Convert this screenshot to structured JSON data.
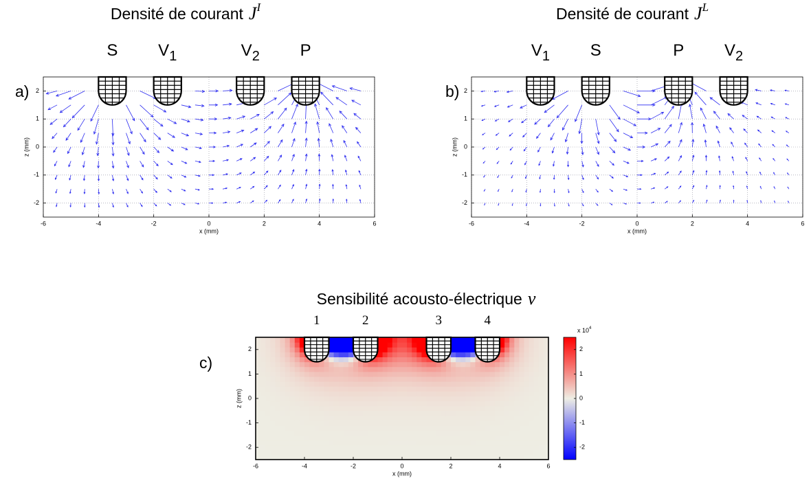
{
  "chart_data": [
    {
      "type": "quiver",
      "panel_label": "a)",
      "title": "Densité de courant",
      "title_symbol": "J",
      "title_superscript": "I",
      "xlabel": "x (mm)",
      "ylabel": "z (mm)",
      "xlim": [
        -6,
        6
      ],
      "ylim": [
        -2.5,
        2.5
      ],
      "xticks": [
        -6,
        -4,
        -2,
        0,
        2,
        4,
        6
      ],
      "yticks": [
        -2,
        -1,
        0,
        1,
        2
      ],
      "grid": true,
      "color": "#2b2bf0",
      "electrodes": [
        {
          "label": "S",
          "x": -3.5
        },
        {
          "label": "V",
          "subscript": "1",
          "x": -1.5
        },
        {
          "label": "V",
          "subscript": "2",
          "x": 1.5
        },
        {
          "label": "P",
          "x": 3.5
        }
      ],
      "current_source": "S",
      "current_sink": "P"
    },
    {
      "type": "quiver",
      "panel_label": "b)",
      "title": "Densité de courant",
      "title_symbol": "J",
      "title_superscript": "L",
      "xlabel": "x (mm)",
      "ylabel": "z (mm)",
      "xlim": [
        -6,
        6
      ],
      "ylim": [
        -2.5,
        2.5
      ],
      "xticks": [
        -6,
        -4,
        -2,
        0,
        2,
        4,
        6
      ],
      "yticks": [
        -2,
        -1,
        0,
        1,
        2
      ],
      "grid": true,
      "color": "#2b2bf0",
      "electrodes": [
        {
          "label": "V",
          "subscript": "1",
          "x": -3.5
        },
        {
          "label": "S",
          "x": -1.5
        },
        {
          "label": "P",
          "x": 1.5
        },
        {
          "label": "V",
          "subscript": "2",
          "x": 3.5
        }
      ],
      "current_source": "S",
      "current_sink": "P"
    },
    {
      "type": "heatmap",
      "panel_label": "c)",
      "title": "Sensibilité acousto-électrique",
      "title_symbol": "ν",
      "xlabel": "x (mm)",
      "ylabel": "z (mm)",
      "xlim": [
        -6,
        6
      ],
      "ylim": [
        -2.5,
        2.5
      ],
      "xticks": [
        -6,
        -4,
        -2,
        0,
        2,
        4,
        6
      ],
      "yticks": [
        -2,
        -1,
        0,
        1,
        2
      ],
      "grid": false,
      "electrodes": [
        {
          "label": "1",
          "x": -3.5
        },
        {
          "label": "2",
          "x": -1.5
        },
        {
          "label": "3",
          "x": 1.5
        },
        {
          "label": "4",
          "x": 3.5
        }
      ],
      "clim": [
        -2.5,
        2.5
      ],
      "cticks": [
        -2,
        -1,
        0,
        1,
        2
      ],
      "colorbar_label": "x 10",
      "colorbar_exponent": "4",
      "colormap": [
        "#0000ff",
        "#eeeee4",
        "#ff0000"
      ]
    }
  ]
}
